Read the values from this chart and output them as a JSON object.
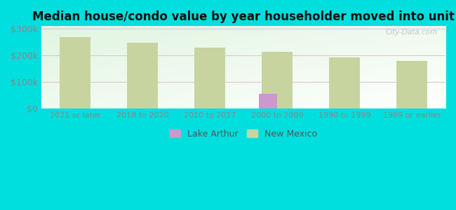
{
  "title": "Median house/condo value by year householder moved into unit",
  "categories": [
    "2021 or later",
    "2018 to 2020",
    "2010 to 2017",
    "2000 to 2009",
    "1990 to 1999",
    "1989 or earlier"
  ],
  "lake_arthur_values": [
    null,
    null,
    null,
    55000,
    null,
    null
  ],
  "new_mexico_values": [
    268000,
    248000,
    228000,
    213000,
    193000,
    178000
  ],
  "lake_arthur_color": "#cc99cc",
  "new_mexico_color": "#c8d4a0",
  "background_outer": "#00dede",
  "ylim": [
    0,
    310000
  ],
  "yticks": [
    0,
    100000,
    200000,
    300000
  ],
  "ytick_labels": [
    "$0",
    "$100k",
    "$200k",
    "$300k"
  ],
  "title_fontsize": 12,
  "watermark": "City-Data.com",
  "legend_lake_arthur": "Lake Arthur",
  "legend_new_mexico": "New Mexico",
  "bar_width": 0.45,
  "grid_color": "#ddc8c8",
  "tick_color": "#888888"
}
